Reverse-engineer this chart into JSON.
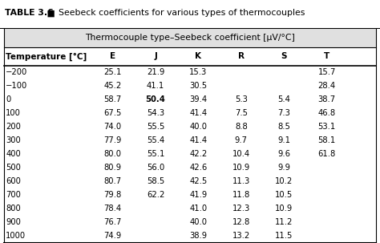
{
  "title_bold": "TABLE 3.6",
  "title_symbol": " ■ ",
  "title_rest": " Seebeck coefficients for various types of thermocouples",
  "subtitle": "Thermocouple type–Seebeck coefficient [μV/°C]",
  "columns": [
    "Temperature [°C]",
    "E",
    "J",
    "K",
    "R",
    "S",
    "T"
  ],
  "rows": [
    [
      "−200",
      "25.1",
      "21.9",
      "15.3",
      "",
      "",
      "15.7"
    ],
    [
      "−100",
      "45.2",
      "41.1",
      "30.5",
      "",
      "",
      "28.4"
    ],
    [
      "0",
      "58.7",
      "50.4",
      "39.4",
      "5.3",
      "5.4",
      "38.7"
    ],
    [
      "100",
      "67.5",
      "54.3",
      "41.4",
      "7.5",
      "7.3",
      "46.8"
    ],
    [
      "200",
      "74.0",
      "55.5",
      "40.0",
      "8.8",
      "8.5",
      "53.1"
    ],
    [
      "300",
      "77.9",
      "55.4",
      "41.4",
      "9.7",
      "9.1",
      "58.1"
    ],
    [
      "400",
      "80.0",
      "55.1",
      "42.2",
      "10.4",
      "9.6",
      "61.8"
    ],
    [
      "500",
      "80.9",
      "56.0",
      "42.6",
      "10.9",
      "9.9",
      ""
    ],
    [
      "600",
      "80.7",
      "58.5",
      "42.5",
      "11.3",
      "10.2",
      ""
    ],
    [
      "700",
      "79.8",
      "62.2",
      "41.9",
      "11.8",
      "10.5",
      ""
    ],
    [
      "800",
      "78.4",
      "",
      "41.0",
      "12.3",
      "10.9",
      ""
    ],
    [
      "900",
      "76.7",
      "",
      "40.0",
      "12.8",
      "11.2",
      ""
    ],
    [
      "1000",
      "74.9",
      "",
      "38.9",
      "13.2",
      "11.5",
      ""
    ]
  ],
  "bold_cell": [
    2,
    2
  ],
  "subheader_bg": "#e0e0e0",
  "fig_width": 4.74,
  "fig_height": 3.03,
  "title_fontsize": 7.8,
  "subtitle_fontsize": 7.8,
  "header_fontsize": 7.5,
  "data_fontsize": 7.2
}
